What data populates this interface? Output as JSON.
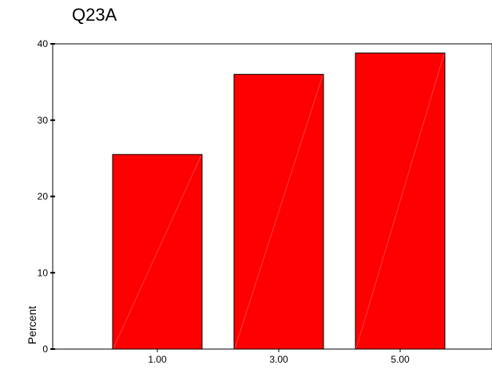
{
  "chart_data": {
    "type": "bar",
    "title": "Q23A",
    "xlabel": "",
    "ylabel": "Percent",
    "categories": [
      "1.00",
      "3.00",
      "5.00"
    ],
    "values": [
      25.5,
      36.0,
      38.8
    ],
    "ylim": [
      0,
      40
    ],
    "yticks": [
      0,
      10,
      20,
      30,
      40
    ],
    "grid": false,
    "bar_color": "#ff0000",
    "bar_edge_color": "#000000"
  }
}
